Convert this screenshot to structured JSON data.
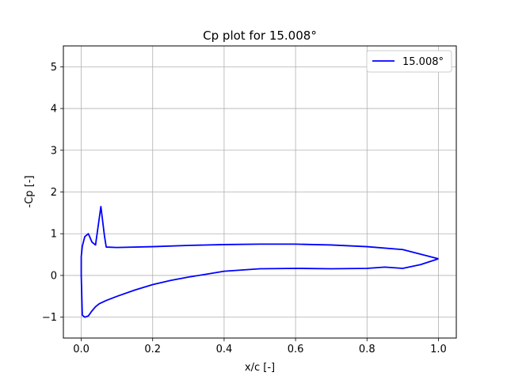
{
  "chart_data": {
    "type": "line",
    "title": "Cp plot for 15.008°",
    "xlabel": "x/c [-]",
    "ylabel": "-Cp [-]",
    "xlim": [
      -0.05,
      1.05
    ],
    "ylim": [
      -1.5,
      5.5
    ],
    "xticks": [
      0.0,
      0.2,
      0.4,
      0.6,
      0.8,
      1.0
    ],
    "xtick_labels": [
      "0.0",
      "0.2",
      "0.4",
      "0.6",
      "0.8",
      "1.0"
    ],
    "yticks": [
      -1,
      0,
      1,
      2,
      3,
      4,
      5
    ],
    "ytick_labels": [
      "−1",
      "0",
      "1",
      "2",
      "3",
      "4",
      "5"
    ],
    "grid": true,
    "legend": "top-right",
    "series": [
      {
        "name": "15.008°",
        "color": "#0000ff",
        "x": [
          1.0,
          0.95,
          0.9,
          0.85,
          0.8,
          0.7,
          0.6,
          0.5,
          0.4,
          0.35,
          0.3,
          0.25,
          0.2,
          0.15,
          0.1,
          0.07,
          0.05,
          0.04,
          0.03,
          0.02,
          0.01,
          0.003,
          0.0,
          0.0,
          0.003,
          0.01,
          0.02,
          0.03,
          0.04,
          0.055,
          0.065,
          0.07,
          0.1,
          0.2,
          0.3,
          0.4,
          0.5,
          0.6,
          0.65,
          0.7,
          0.8,
          0.9,
          1.0
        ],
        "y": [
          0.4,
          0.26,
          0.17,
          0.2,
          0.17,
          0.16,
          0.17,
          0.16,
          0.1,
          0.03,
          -0.04,
          -0.12,
          -0.22,
          -0.35,
          -0.5,
          -0.6,
          -0.68,
          -0.75,
          -0.85,
          -0.97,
          -1.0,
          -0.95,
          0.0,
          0.45,
          0.7,
          0.93,
          1.0,
          0.8,
          0.73,
          1.65,
          0.95,
          0.68,
          0.67,
          0.69,
          0.72,
          0.74,
          0.75,
          0.75,
          0.74,
          0.73,
          0.69,
          0.62,
          0.4
        ]
      }
    ]
  }
}
